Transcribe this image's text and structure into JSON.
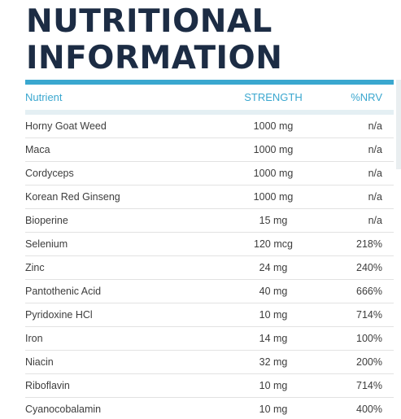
{
  "title": {
    "line1": "NUTRITIONAL",
    "line2": "INFORMATION"
  },
  "colors": {
    "title": "#1c2c44",
    "accent": "#3aa7cf",
    "text": "#3d3d3d"
  },
  "table": {
    "headers": {
      "nutrient": "Nutrient",
      "strength": "STRENGTH",
      "nrv": "%NRV"
    },
    "rows": [
      {
        "nutrient": "Horny Goat Weed",
        "strength": "1000 mg",
        "nrv": "n/a"
      },
      {
        "nutrient": "Maca",
        "strength": "1000 mg",
        "nrv": "n/a"
      },
      {
        "nutrient": "Cordyceps",
        "strength": "1000 mg",
        "nrv": "n/a"
      },
      {
        "nutrient": "Korean Red Ginseng",
        "strength": "1000 mg",
        "nrv": "n/a"
      },
      {
        "nutrient": "Bioperine",
        "strength": "15 mg",
        "nrv": "n/a"
      },
      {
        "nutrient": "Selenium",
        "strength": "120 mcg",
        "nrv": "218%"
      },
      {
        "nutrient": "Zinc",
        "strength": "24 mg",
        "nrv": "240%"
      },
      {
        "nutrient": "Pantothenic Acid",
        "strength": "40 mg",
        "nrv": "666%"
      },
      {
        "nutrient": "Pyridoxine HCl",
        "strength": "10 mg",
        "nrv": "714%"
      },
      {
        "nutrient": "Iron",
        "strength": "14 mg",
        "nrv": "100%"
      },
      {
        "nutrient": "Niacin",
        "strength": "32 mg",
        "nrv": "200%"
      },
      {
        "nutrient": "Riboflavin",
        "strength": "10 mg",
        "nrv": "714%"
      },
      {
        "nutrient": "Cyanocobalamin",
        "strength": "10 mg",
        "nrv": "400%"
      }
    ]
  }
}
